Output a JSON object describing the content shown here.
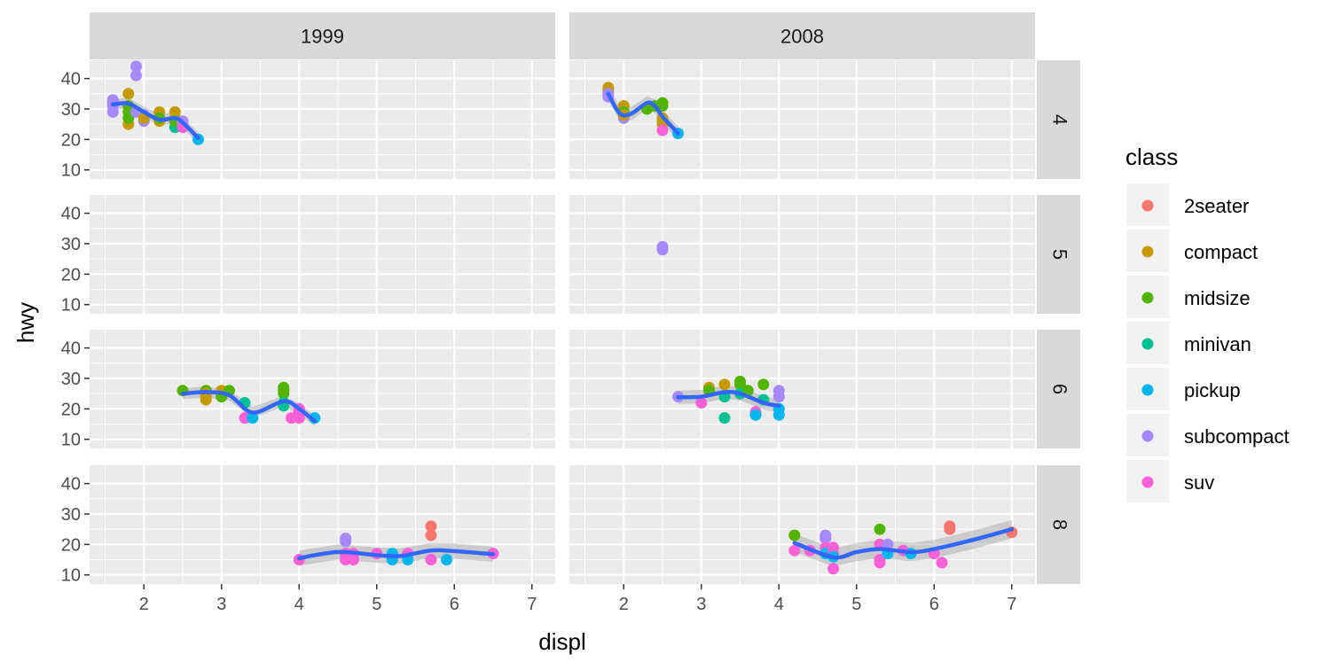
{
  "chart_data": {
    "type": "scatter",
    "facet_cols": [
      "1999",
      "2008"
    ],
    "facet_rows": [
      "4",
      "5",
      "6",
      "8"
    ],
    "xlabel": "displ",
    "ylabel": "hwy",
    "xlim": [
      1.3,
      7.3
    ],
    "ylim": [
      7,
      46
    ],
    "xticks": [
      2,
      3,
      4,
      5,
      6,
      7
    ],
    "yticks": [
      10,
      20,
      30,
      40
    ],
    "legend": {
      "title": "class",
      "position": "right",
      "entries": [
        {
          "name": "2seater",
          "color": "#F8766D"
        },
        {
          "name": "compact",
          "color": "#C49A00"
        },
        {
          "name": "midsize",
          "color": "#53B400"
        },
        {
          "name": "minivan",
          "color": "#00C094"
        },
        {
          "name": "pickup",
          "color": "#00B6EB"
        },
        {
          "name": "subcompact",
          "color": "#A58AFF"
        },
        {
          "name": "suv",
          "color": "#FB61D7"
        }
      ]
    },
    "smooth_color": "#3366FF",
    "panels": [
      {
        "year": "1999",
        "cyl": "4",
        "points": [
          [
            1.6,
            33,
            "subcompact"
          ],
          [
            1.6,
            32,
            "subcompact"
          ],
          [
            1.6,
            29,
            "subcompact"
          ],
          [
            1.6,
            32,
            "subcompact"
          ],
          [
            1.6,
            31,
            "subcompact"
          ],
          [
            1.8,
            35,
            "compact"
          ],
          [
            1.8,
            29,
            "compact"
          ],
          [
            1.8,
            25,
            "compact"
          ],
          [
            1.8,
            31,
            "midsize"
          ],
          [
            1.8,
            29,
            "midsize"
          ],
          [
            1.8,
            27,
            "midsize"
          ],
          [
            1.9,
            44,
            "subcompact"
          ],
          [
            1.9,
            41,
            "subcompact"
          ],
          [
            1.9,
            29,
            "subcompact"
          ],
          [
            2.0,
            26,
            "subcompact"
          ],
          [
            2.0,
            28,
            "subcompact"
          ],
          [
            2.0,
            27,
            "compact"
          ],
          [
            2.2,
            29,
            "compact"
          ],
          [
            2.2,
            26,
            "compact"
          ],
          [
            2.2,
            27,
            "midsize"
          ],
          [
            2.4,
            29,
            "compact"
          ],
          [
            2.4,
            27,
            "compact"
          ],
          [
            2.4,
            24,
            "minivan"
          ],
          [
            2.4,
            26,
            "midsize"
          ],
          [
            2.5,
            26,
            "subcompact"
          ],
          [
            2.5,
            25,
            "subcompact"
          ],
          [
            2.5,
            24,
            "suv"
          ],
          [
            2.7,
            20,
            "pickup"
          ]
        ],
        "smooth": [
          [
            1.6,
            31.5
          ],
          [
            1.8,
            31.8
          ],
          [
            2.0,
            29
          ],
          [
            2.2,
            26.5
          ],
          [
            2.4,
            27
          ],
          [
            2.5,
            25.5
          ],
          [
            2.7,
            20.5
          ]
        ],
        "band": 1.8
      },
      {
        "year": "2008",
        "cyl": "4",
        "points": [
          [
            1.8,
            37,
            "compact"
          ],
          [
            1.8,
            36,
            "compact"
          ],
          [
            1.8,
            35,
            "subcompact"
          ],
          [
            1.8,
            34,
            "subcompact"
          ],
          [
            2.0,
            31,
            "compact"
          ],
          [
            2.0,
            29,
            "midsize"
          ],
          [
            2.0,
            28,
            "midsize"
          ],
          [
            2.0,
            27,
            "subcompact"
          ],
          [
            2.0,
            28,
            "compact"
          ],
          [
            2.3,
            30,
            "midsize"
          ],
          [
            2.4,
            31,
            "midsize"
          ],
          [
            2.5,
            32,
            "midsize"
          ],
          [
            2.5,
            31,
            "midsize"
          ],
          [
            2.5,
            27,
            "compact"
          ],
          [
            2.5,
            26,
            "compact"
          ],
          [
            2.5,
            25,
            "compact"
          ],
          [
            2.5,
            23,
            "suv"
          ],
          [
            2.7,
            22,
            "pickup"
          ]
        ],
        "smooth": [
          [
            1.8,
            35
          ],
          [
            1.95,
            28.5
          ],
          [
            2.1,
            28.5
          ],
          [
            2.3,
            32
          ],
          [
            2.4,
            31
          ],
          [
            2.5,
            27.5
          ],
          [
            2.7,
            22
          ]
        ],
        "band": 2.2
      },
      {
        "year": "1999",
        "cyl": "5",
        "points": [],
        "smooth": [],
        "band": 0
      },
      {
        "year": "2008",
        "cyl": "5",
        "points": [
          [
            2.5,
            29,
            "subcompact"
          ],
          [
            2.5,
            28,
            "subcompact"
          ]
        ],
        "smooth": [],
        "band": 0
      },
      {
        "year": "1999",
        "cyl": "6",
        "points": [
          [
            2.5,
            26,
            "midsize"
          ],
          [
            2.8,
            26,
            "midsize"
          ],
          [
            2.8,
            25,
            "compact"
          ],
          [
            2.8,
            23,
            "compact"
          ],
          [
            2.8,
            24,
            "compact"
          ],
          [
            3.0,
            26,
            "compact"
          ],
          [
            3.0,
            24,
            "midsize"
          ],
          [
            3.1,
            26,
            "midsize"
          ],
          [
            3.3,
            22,
            "minivan"
          ],
          [
            3.3,
            17,
            "suv"
          ],
          [
            3.4,
            17,
            "pickup"
          ],
          [
            3.8,
            27,
            "midsize"
          ],
          [
            3.8,
            26,
            "midsize"
          ],
          [
            3.8,
            25,
            "midsize"
          ],
          [
            3.8,
            22,
            "minivan"
          ],
          [
            3.8,
            21,
            "minivan"
          ],
          [
            3.9,
            17,
            "suv"
          ],
          [
            4.0,
            17,
            "suv"
          ],
          [
            4.0,
            20,
            "suv"
          ],
          [
            4.0,
            19,
            "suv"
          ],
          [
            4.2,
            17,
            "pickup"
          ]
        ],
        "smooth": [
          [
            2.5,
            25
          ],
          [
            2.8,
            25.5
          ],
          [
            3.1,
            24.5
          ],
          [
            3.4,
            18.8
          ],
          [
            3.8,
            22.5
          ],
          [
            4.0,
            20
          ],
          [
            4.2,
            16
          ]
        ],
        "band": 1.8
      },
      {
        "year": "2008",
        "cyl": "6",
        "points": [
          [
            2.7,
            24,
            "subcompact"
          ],
          [
            3.0,
            22,
            "suv"
          ],
          [
            3.1,
            27,
            "compact"
          ],
          [
            3.1,
            26,
            "midsize"
          ],
          [
            3.3,
            28,
            "compact"
          ],
          [
            3.3,
            24,
            "minivan"
          ],
          [
            3.3,
            17,
            "minivan"
          ],
          [
            3.5,
            29,
            "midsize"
          ],
          [
            3.5,
            28,
            "midsize"
          ],
          [
            3.5,
            25,
            "minivan"
          ],
          [
            3.6,
            26,
            "midsize"
          ],
          [
            3.7,
            19,
            "suv"
          ],
          [
            3.7,
            18,
            "pickup"
          ],
          [
            3.8,
            28,
            "midsize"
          ],
          [
            3.8,
            23,
            "minivan"
          ],
          [
            4.0,
            26,
            "subcompact"
          ],
          [
            4.0,
            24,
            "subcompact"
          ],
          [
            4.0,
            20,
            "pickup"
          ],
          [
            4.0,
            18,
            "pickup"
          ]
        ],
        "smooth": [
          [
            2.7,
            23.8
          ],
          [
            3.0,
            24
          ],
          [
            3.3,
            25.5
          ],
          [
            3.5,
            25
          ],
          [
            3.8,
            22
          ],
          [
            4.0,
            21
          ]
        ],
        "band": 2.2
      },
      {
        "year": "1999",
        "cyl": "8",
        "points": [
          [
            4.0,
            15,
            "suv"
          ],
          [
            4.6,
            22,
            "subcompact"
          ],
          [
            4.6,
            21,
            "subcompact"
          ],
          [
            4.6,
            17,
            "suv"
          ],
          [
            4.6,
            16,
            "suv"
          ],
          [
            4.6,
            15,
            "suv"
          ],
          [
            4.7,
            17,
            "suv"
          ],
          [
            4.7,
            15,
            "suv"
          ],
          [
            5.0,
            17,
            "suv"
          ],
          [
            5.2,
            17,
            "pickup"
          ],
          [
            5.2,
            15,
            "pickup"
          ],
          [
            5.4,
            17,
            "suv"
          ],
          [
            5.4,
            15,
            "pickup"
          ],
          [
            5.7,
            26,
            "2seater"
          ],
          [
            5.7,
            23,
            "2seater"
          ],
          [
            5.7,
            15,
            "suv"
          ],
          [
            5.9,
            15,
            "pickup"
          ],
          [
            6.5,
            17,
            "suv"
          ]
        ],
        "smooth": [
          [
            4.0,
            15.5
          ],
          [
            4.5,
            17.5
          ],
          [
            5.0,
            16.5
          ],
          [
            5.3,
            16.2
          ],
          [
            5.7,
            18
          ],
          [
            6.0,
            17.8
          ],
          [
            6.5,
            16.8
          ]
        ],
        "band": 2.5
      },
      {
        "year": "2008",
        "cyl": "8",
        "points": [
          [
            4.2,
            23,
            "midsize"
          ],
          [
            4.2,
            18,
            "suv"
          ],
          [
            4.4,
            18,
            "suv"
          ],
          [
            4.6,
            23,
            "subcompact"
          ],
          [
            4.6,
            22,
            "subcompact"
          ],
          [
            4.6,
            19,
            "suv"
          ],
          [
            4.6,
            17,
            "pickup"
          ],
          [
            4.7,
            19,
            "suv"
          ],
          [
            4.7,
            17,
            "suv"
          ],
          [
            4.7,
            16,
            "pickup"
          ],
          [
            4.7,
            12,
            "suv"
          ],
          [
            5.3,
            25,
            "midsize"
          ],
          [
            5.3,
            20,
            "suv"
          ],
          [
            5.3,
            15,
            "suv"
          ],
          [
            5.3,
            14,
            "suv"
          ],
          [
            5.4,
            20,
            "subcompact"
          ],
          [
            5.4,
            17,
            "pickup"
          ],
          [
            5.6,
            18,
            "suv"
          ],
          [
            5.7,
            17,
            "pickup"
          ],
          [
            6.0,
            17,
            "suv"
          ],
          [
            6.1,
            14,
            "suv"
          ],
          [
            6.2,
            26,
            "2seater"
          ],
          [
            6.2,
            25,
            "2seater"
          ],
          [
            7.0,
            24,
            "2seater"
          ]
        ],
        "smooth": [
          [
            4.2,
            20.5
          ],
          [
            4.7,
            15.8
          ],
          [
            5.0,
            17.5
          ],
          [
            5.3,
            18.5
          ],
          [
            5.7,
            17.5
          ],
          [
            6.0,
            18.5
          ],
          [
            6.5,
            21.5
          ],
          [
            7.0,
            25
          ]
        ],
        "band": 3
      }
    ]
  }
}
